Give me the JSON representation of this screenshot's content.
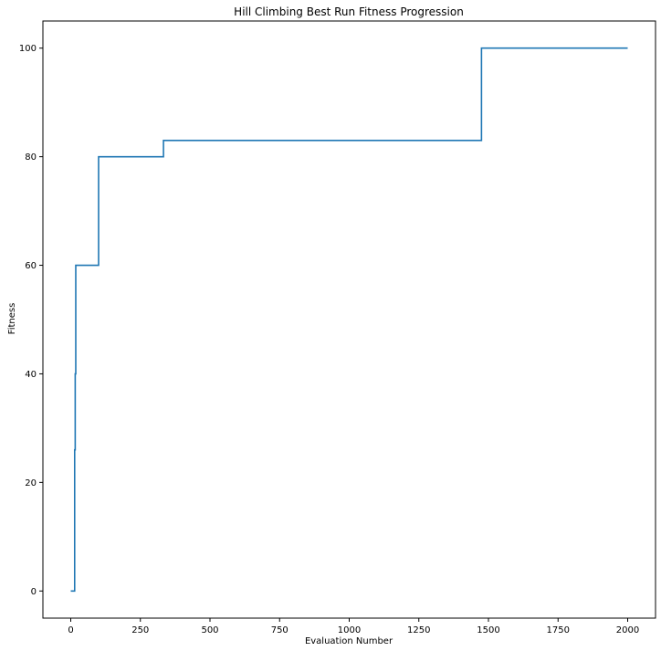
{
  "chart_data": {
    "type": "line",
    "title": "Hill Climbing Best Run Fitness Progression",
    "xlabel": "Evaluation Number",
    "ylabel": "Fitness",
    "xlim": [
      -100,
      2100
    ],
    "ylim": [
      -5,
      105
    ],
    "xticks": [
      0,
      250,
      500,
      750,
      1000,
      1250,
      1500,
      1750,
      2000
    ],
    "yticks": [
      0,
      20,
      40,
      60,
      80,
      100
    ],
    "grid": false,
    "legend": "none",
    "series": [
      {
        "color": "#1f77b4",
        "step": true,
        "points": [
          [
            0,
            0
          ],
          [
            14,
            0
          ],
          [
            14,
            26
          ],
          [
            16,
            26
          ],
          [
            16,
            40
          ],
          [
            18,
            40
          ],
          [
            18,
            60
          ],
          [
            100,
            60
          ],
          [
            100,
            80
          ],
          [
            333,
            80
          ],
          [
            333,
            83
          ],
          [
            1475,
            83
          ],
          [
            1475,
            100
          ],
          [
            2000,
            100
          ]
        ]
      }
    ]
  }
}
